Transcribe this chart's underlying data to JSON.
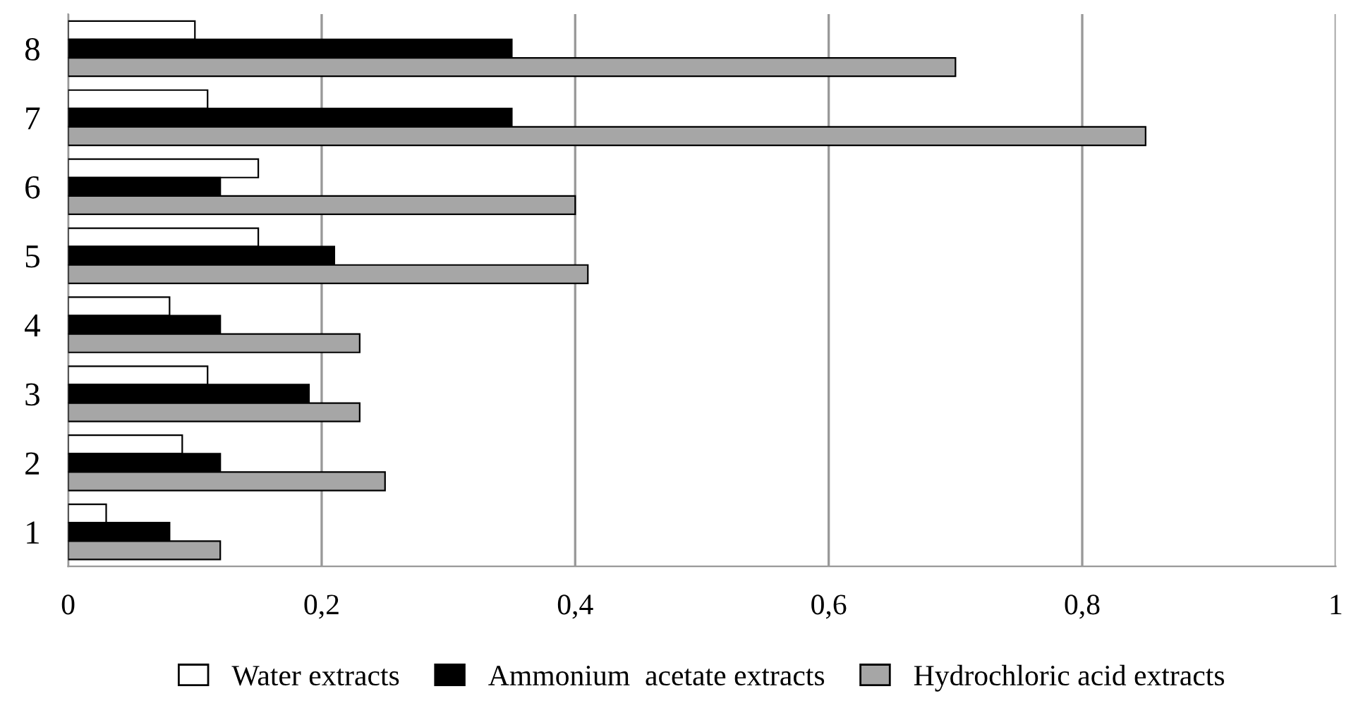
{
  "chart_data": {
    "type": "bar",
    "orientation": "horizontal",
    "categories": [
      "8",
      "7",
      "6",
      "5",
      "4",
      "3",
      "2",
      "1"
    ],
    "series": [
      {
        "name": "Water extracts",
        "color": "#ffffff",
        "values": [
          0.1,
          0.11,
          0.15,
          0.15,
          0.08,
          0.11,
          0.09,
          0.03
        ]
      },
      {
        "name": "Ammonium  acetate extracts",
        "color": "#000000",
        "values": [
          0.35,
          0.35,
          0.12,
          0.21,
          0.12,
          0.19,
          0.12,
          0.08
        ]
      },
      {
        "name": "Hydrochloric acid extracts",
        "color": "#a6a6a6",
        "values": [
          0.7,
          0.85,
          0.4,
          0.41,
          0.23,
          0.23,
          0.25,
          0.12
        ]
      }
    ],
    "xlim": [
      0,
      1
    ],
    "xticks": [
      0,
      {
        "value": 0.2,
        "label": "0,2"
      },
      {
        "value": 0.4,
        "label": "0,4"
      },
      {
        "value": 0.6,
        "label": "0,6"
      },
      {
        "value": 0.8,
        "label": "0,8"
      },
      1
    ],
    "grid": "x",
    "legend": "bottom"
  }
}
